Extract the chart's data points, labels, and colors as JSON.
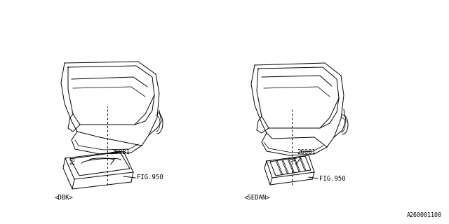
{
  "bg_color": "#ffffff",
  "line_color": "#000000",
  "fig_width": 6.4,
  "fig_height": 3.2,
  "dpi": 100,
  "part_number": "26081",
  "fig_ref": "FIG.950",
  "label_left": "<DBK>",
  "label_right": "<SEDAN>",
  "watermark": "A260001100"
}
